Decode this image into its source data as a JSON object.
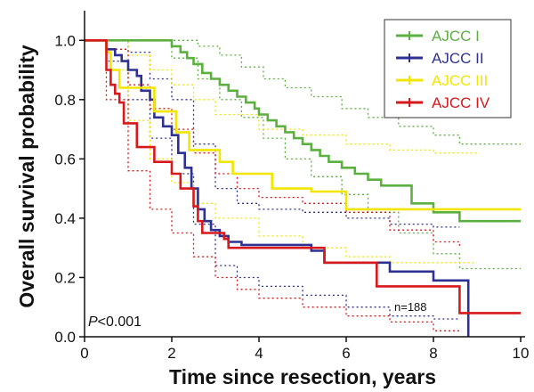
{
  "chart_data": {
    "type": "line",
    "title": "",
    "xlabel": "Time since resection, years",
    "ylabel": "Overall survival probability",
    "xlim": [
      0,
      10
    ],
    "ylim": [
      0,
      1.1
    ],
    "x_ticks": [
      "0",
      "2",
      "4",
      "6",
      "8",
      "10"
    ],
    "y_ticks": [
      "0.0",
      "0.2",
      "0.4",
      "0.6",
      "0.8",
      "1.0"
    ],
    "grid": false,
    "legend_position": "top-right",
    "annotations": {
      "p_value_italic": "P",
      "p_value_rest": "<0.001",
      "n": "n=188"
    },
    "series": [
      {
        "name": "AJCC I",
        "color": "#5bb040",
        "step_x": [
          0,
          2.0,
          2.2,
          2.35,
          2.5,
          2.7,
          2.9,
          3.1,
          3.3,
          3.5,
          3.7,
          3.9,
          4.0,
          4.2,
          4.4,
          4.6,
          4.8,
          5.0,
          5.2,
          5.4,
          5.6,
          5.9,
          6.2,
          6.5,
          6.8,
          7.5,
          8.0,
          8.6,
          10
        ],
        "step_y": [
          1.0,
          0.98,
          0.96,
          0.94,
          0.92,
          0.89,
          0.87,
          0.85,
          0.83,
          0.81,
          0.79,
          0.77,
          0.75,
          0.73,
          0.71,
          0.69,
          0.67,
          0.65,
          0.63,
          0.61,
          0.59,
          0.57,
          0.55,
          0.53,
          0.51,
          0.45,
          0.42,
          0.39,
          0.39
        ],
        "ci_upper_x": [
          0,
          2.0,
          2.6,
          3.1,
          3.6,
          4.1,
          4.6,
          5.2,
          5.9,
          6.5,
          7.2,
          8.0,
          8.6,
          10
        ],
        "ci_upper_y": [
          1.0,
          1.0,
          0.98,
          0.95,
          0.91,
          0.87,
          0.84,
          0.81,
          0.77,
          0.74,
          0.71,
          0.68,
          0.65,
          0.65
        ],
        "ci_lower_x": [
          0,
          2.0,
          2.6,
          3.1,
          3.6,
          4.1,
          4.6,
          5.2,
          5.9,
          6.5,
          7.2,
          8.0,
          8.6,
          10
        ],
        "ci_lower_y": [
          1.0,
          0.94,
          0.87,
          0.8,
          0.74,
          0.67,
          0.6,
          0.54,
          0.48,
          0.42,
          0.35,
          0.28,
          0.23,
          0.23
        ]
      },
      {
        "name": "AJCC II",
        "color": "#2e3192",
        "step_x": [
          0,
          0.5,
          0.7,
          0.85,
          1.0,
          1.2,
          1.3,
          1.5,
          1.6,
          1.8,
          2.0,
          2.15,
          2.3,
          2.45,
          2.6,
          2.75,
          2.9,
          3.1,
          3.3,
          3.6,
          4.0,
          5.2,
          5.5,
          6.0,
          7.0,
          8.0,
          8.6,
          8.8
        ],
        "step_y": [
          1.0,
          0.97,
          0.95,
          0.93,
          0.9,
          0.88,
          0.83,
          0.8,
          0.74,
          0.71,
          0.68,
          0.62,
          0.57,
          0.5,
          0.43,
          0.39,
          0.36,
          0.34,
          0.32,
          0.31,
          0.31,
          0.29,
          0.25,
          0.25,
          0.22,
          0.19,
          0.19,
          0.0
        ],
        "ci_upper_x": [
          0,
          0.5,
          1.0,
          1.5,
          2.0,
          2.5,
          3.0,
          3.5,
          4.0,
          5.0,
          6.0,
          7.0,
          8.0,
          8.6
        ],
        "ci_upper_y": [
          1.0,
          1.0,
          0.96,
          0.87,
          0.8,
          0.65,
          0.5,
          0.45,
          0.43,
          0.42,
          0.4,
          0.38,
          0.37,
          0.37
        ],
        "ci_lower_x": [
          0,
          0.5,
          1.0,
          1.5,
          2.0,
          2.5,
          3.0,
          3.5,
          4.0,
          5.0,
          6.0,
          7.0,
          8.0,
          8.6
        ],
        "ci_lower_y": [
          1.0,
          0.93,
          0.8,
          0.67,
          0.55,
          0.38,
          0.24,
          0.2,
          0.17,
          0.14,
          0.1,
          0.07,
          0.06,
          0.06
        ]
      },
      {
        "name": "AJCC III",
        "color": "#f2e600",
        "step_x": [
          0,
          0.5,
          0.6,
          0.8,
          1.0,
          1.2,
          1.6,
          2.1,
          2.4,
          3.1,
          3.4,
          4.0,
          4.3,
          5.2,
          6.0,
          6.9,
          10
        ],
        "step_y": [
          1.0,
          0.96,
          0.9,
          0.84,
          0.84,
          0.84,
          0.76,
          0.69,
          0.63,
          0.59,
          0.55,
          0.55,
          0.5,
          0.49,
          0.43,
          0.43,
          0.43
        ],
        "ci_upper_x": [
          0,
          0.5,
          1.0,
          1.5,
          2.0,
          2.5,
          3.0,
          4.0,
          5.0,
          6.0,
          7.0,
          8.0,
          9.0
        ],
        "ci_upper_y": [
          1.0,
          1.0,
          0.95,
          0.9,
          0.85,
          0.8,
          0.75,
          0.7,
          0.68,
          0.65,
          0.63,
          0.62,
          0.62
        ],
        "ci_lower_x": [
          0,
          0.5,
          1.0,
          1.5,
          2.0,
          2.5,
          3.0,
          4.0,
          5.0,
          6.0,
          7.0,
          8.0,
          9.0
        ],
        "ci_lower_y": [
          1.0,
          0.9,
          0.73,
          0.6,
          0.52,
          0.45,
          0.4,
          0.34,
          0.3,
          0.27,
          0.25,
          0.25,
          0.25
        ]
      },
      {
        "name": "AJCC IV",
        "color": "#d7191c",
        "step_x": [
          0,
          0.5,
          0.6,
          0.7,
          0.8,
          0.9,
          1.2,
          1.6,
          2.0,
          2.2,
          2.5,
          2.6,
          2.7,
          3.2,
          3.3,
          5.0,
          5.5,
          6.7,
          8.6,
          10
        ],
        "step_y": [
          1.0,
          0.9,
          0.85,
          0.82,
          0.79,
          0.72,
          0.64,
          0.59,
          0.55,
          0.5,
          0.44,
          0.39,
          0.35,
          0.33,
          0.3,
          0.3,
          0.25,
          0.17,
          0.08,
          0.08
        ],
        "ci_upper_x": [
          0,
          0.5,
          1.0,
          1.5,
          2.0,
          2.5,
          3.0,
          3.5,
          4.0,
          5.0,
          6.0,
          7.0,
          8.0,
          8.6
        ],
        "ci_upper_y": [
          1.0,
          0.97,
          0.85,
          0.77,
          0.7,
          0.62,
          0.55,
          0.5,
          0.47,
          0.45,
          0.42,
          0.36,
          0.32,
          0.3
        ],
        "ci_lower_x": [
          0,
          0.5,
          1.0,
          1.5,
          2.0,
          2.5,
          3.0,
          3.5,
          4.0,
          5.0,
          6.0,
          7.0,
          8.0,
          8.6
        ],
        "ci_lower_y": [
          1.0,
          0.8,
          0.56,
          0.43,
          0.35,
          0.27,
          0.2,
          0.16,
          0.13,
          0.1,
          0.07,
          0.05,
          0.02,
          0.02
        ]
      }
    ]
  }
}
